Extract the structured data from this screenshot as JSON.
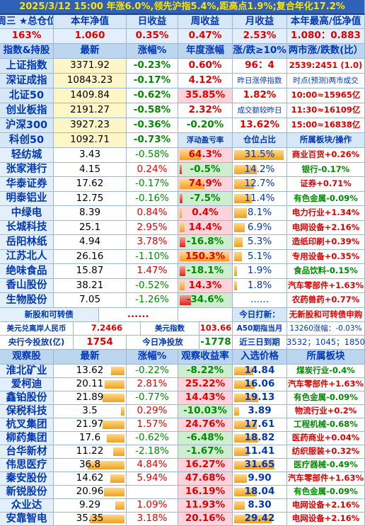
{
  "title": "2025/3/12 15:00 年涨6.0%,领先沪指5.4%,距高点1.9%;复合年化17.2%",
  "h1": [
    "周三 ★总仓位",
    "本年净值",
    "日收益",
    "周收益",
    "月收益",
    "本年最高/低净值"
  ],
  "v1": [
    "163%",
    "1.060",
    "0.35%",
    "0.47%",
    "2.53%",
    "1.080：0.883"
  ],
  "h2": [
    "指数&持股",
    "最新",
    "涨幅%",
    "年度涨幅",
    "涨/跌≥10%",
    "两市涨/跌数(比）"
  ],
  "index_rows": [
    [
      "上证指数",
      "3371.92",
      "-0.23%",
      "0.60%",
      "96：4",
      "2539:2451 (1.0)"
    ],
    [
      "深证成指",
      "10843.23",
      "-0.17%",
      "4.12%",
      "昨日涨停指数",
      "时点(预测)两市成交"
    ],
    [
      "北证50",
      "1409.84",
      "-0.62%",
      "35.85%",
      "1.82%",
      "10:00≈15965亿"
    ],
    [
      "创业板指",
      "2191.27",
      "-0.58%",
      "2.32%",
      "成交额较昨日",
      "11:30≈16109亿"
    ],
    [
      "沪深300",
      "3927.23",
      "-0.36%",
      "-0.20%",
      "13.62%",
      "15:00≈16838亿"
    ],
    [
      "科创50",
      "1092.71",
      "-0.73%",
      "浮动盈亏率",
      "仓位占比",
      "所属板块/操作"
    ]
  ],
  "hold_rows": [
    [
      "轻纺城",
      "3.43",
      "-0.58%",
      "64.3%",
      "31.5%",
      "商业百货+0.26%"
    ],
    [
      "张家港行",
      "4.15",
      "0.24%",
      "-0.5%",
      "14.2%",
      "银行-0.17%"
    ],
    [
      "华泰证券",
      "17.62",
      "-0.17%",
      "74.9%",
      "12.7%",
      "证券+0.71%"
    ],
    [
      "明泰铝业",
      "12.75",
      "-0.16%",
      "-7.5%",
      "11.4%",
      "有色金属-0.09%"
    ],
    [
      "中绿电",
      "8.39",
      "0.84%",
      "0.4%",
      "8.1%",
      "电力行业+1.34%"
    ],
    [
      "长城科技",
      "25.1",
      "2.95%",
      "14.4%",
      "6.9%",
      "电网设备+2.16%"
    ],
    [
      "岳阳林纸",
      "4.94",
      "3.78%",
      "-16.8%",
      "5.3%",
      "造纸印刷+0.39%"
    ],
    [
      "江苏北人",
      "26.16",
      "-1.10%",
      "150.3%",
      "5.1%",
      "专用设备+0.35%"
    ],
    [
      "绝味食品",
      "15.87",
      "1.47%",
      "-18.1%",
      "1.9%",
      "食品饮料-0.15%"
    ],
    [
      "香山股份",
      "38.21",
      "-0.52%",
      "14.3%",
      "1.8%",
      "汽车零部件+1.63%"
    ],
    [
      "生物股份",
      "7.05",
      "-1.26%",
      "-34.6%",
      "......",
      "农药兽药+0.77%"
    ]
  ],
  "misc": {
    "new_label": "新股和可转债",
    "new_dots": "......",
    "today_label": "今日打新：",
    "today_val": "无新股和可转债申购",
    "usd_label": "美元兑离岸人民币",
    "usd_val": "7.2466",
    "usdidx_label": "美元指数",
    "usdidx_val": "103.66",
    "a50_label": "A50期指当月",
    "a50_val": "13260涨幅：-0.03%",
    "pboc_label": "央行今投放(亿)",
    "pboc_val": "1754",
    "net_label": "今日净投放",
    "net_val": "-1778",
    "exp_label": "近三日到期",
    "exp_val": "3532；1045；1850"
  },
  "h3": [
    "观察股",
    "最新",
    "涨幅%",
    "观察收益率",
    "入选价格",
    "所属板块"
  ],
  "watch_rows": [
    [
      "淮北矿业",
      "13.62",
      "-0.22%",
      "-8.22%",
      "14.84",
      "煤炭行业-0.4%"
    ],
    [
      "爱柯迪",
      "20.11",
      "2.81%",
      "25.22%",
      "16.06",
      "汽车零部件+1.63%"
    ],
    [
      "鑫铂股份",
      "21.89",
      "-0.77%",
      "14.43%",
      "19.13",
      "有色金属-0.09%"
    ],
    [
      "保税科技",
      "3.5",
      "0.29%",
      "-10.03%",
      "3.89",
      "物流行业+0.2%"
    ],
    [
      "杭叉集团",
      "21.97",
      "1.57%",
      "24.76%",
      "17.61",
      "工程机械-0.68%"
    ],
    [
      "柳药集团",
      "17.6",
      "-0.62%",
      "-6.48%",
      "18.82",
      "医药商业+0.04%"
    ],
    [
      "台华新材",
      "11.22",
      "-2.18%",
      "-1.67%",
      "11.41",
      "纺织服装+0.32%"
    ],
    [
      "伟思医疗",
      "36.8",
      "4.84%",
      "16.27%",
      "31.65",
      "医疗器械-0.49%"
    ],
    [
      "秦安股份",
      "14.62",
      "5.94%",
      "47.68%",
      "9.90",
      "汽车零部件+1.63%"
    ],
    [
      "新锐股份",
      "20.96",
      "",
      "16.19%",
      "18.04",
      "有色金属-0.09%"
    ],
    [
      "众业达",
      "9.29",
      "1.09%",
      "11.93%",
      "8.30",
      "电网设备+2.16%"
    ],
    [
      "安靠智电",
      "35.35",
      "3.18%",
      "20.16%",
      "29.42",
      "电网设备+2.16%"
    ]
  ]
}
